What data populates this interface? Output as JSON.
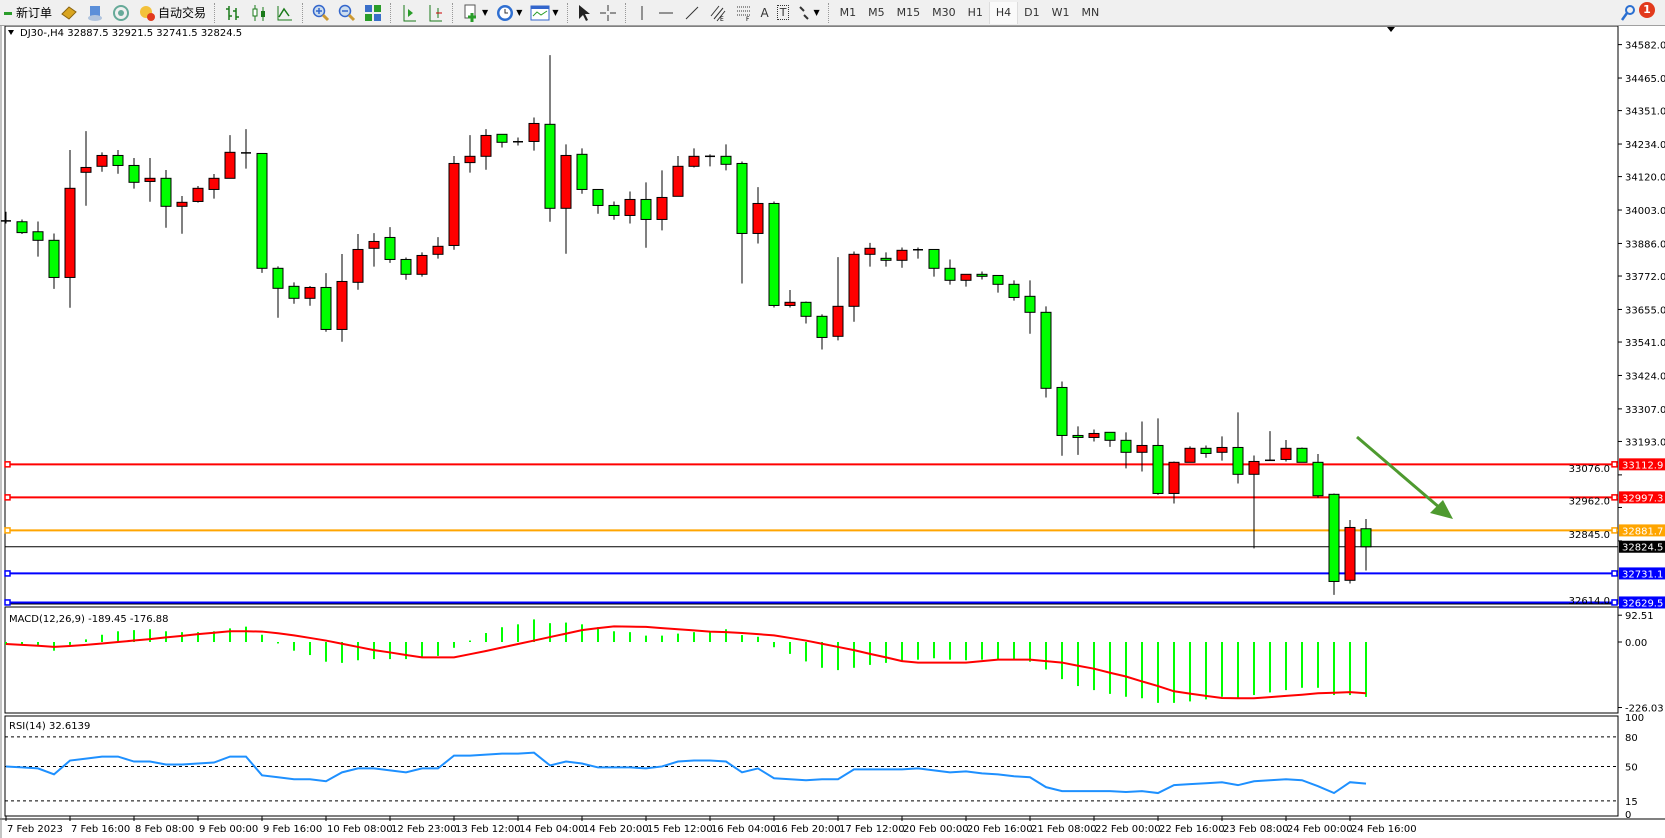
{
  "toolbar": {
    "new_order_label": "新订单",
    "auto_trading_label": "自动交易",
    "timeframes": [
      "M1",
      "M5",
      "M15",
      "M30",
      "H1",
      "H4",
      "D1",
      "W1",
      "MN"
    ],
    "active_timeframe": "H4",
    "notification_count": "1",
    "text_tool_label": "A",
    "text_label_tool": "T"
  },
  "chart": {
    "header": "DJ30-,H4  32887.5 32921.5 32741.5 32824.5",
    "symbol": "DJ30-",
    "timeframe": "H4",
    "colors": {
      "bull": "#ff0000",
      "bear": "#00ff00",
      "macd_hist": "#00ff00",
      "macd_signal": "#ff0000",
      "rsi": "#1e90ff",
      "annotation_arrow": "#4e9a2f"
    },
    "levels": [
      {
        "price": 33112.9,
        "label": "33112.9",
        "color": "#ff0000"
      },
      {
        "price": 32997.3,
        "label": "32997.3",
        "color": "#ff0000"
      },
      {
        "price": 32881.7,
        "label": "32881.7",
        "color": "#ffa500"
      },
      {
        "price": 32731.1,
        "label": "32731.1",
        "color": "#0000ff"
      },
      {
        "price": 32629.5,
        "label": "32629.5",
        "color": "#0000ff"
      }
    ],
    "current_price": {
      "price": 32824.5,
      "label": "32824.5"
    }
  },
  "chart_data": [
    {
      "type": "candlestick",
      "title": "DJ30-,H4",
      "yaxis_ticks": [
        "34582.0",
        "34465.0",
        "34351.0",
        "34234.0",
        "34120.0",
        "34003.0",
        "33886.0",
        "33772.0",
        "33655.0",
        "33541.0",
        "33424.0",
        "33307.0",
        "33193.0",
        "33076.0",
        "32962.0",
        "32845.0",
        "32614.0"
      ],
      "x_tick_labels": [
        "7 Feb 2023",
        "7 Feb 16:00",
        "8 Feb 08:00",
        "9 Feb 00:00",
        "9 Feb 16:00",
        "10 Feb 08:00",
        "12 Feb 23:00",
        "13 Feb 12:00",
        "14 Feb 04:00",
        "14 Feb 20:00",
        "15 Feb 12:00",
        "16 Feb 04:00",
        "16 Feb 20:00",
        "17 Feb 12:00",
        "20 Feb 00:00",
        "20 Feb 16:00",
        "21 Feb 08:00",
        "22 Feb 00:00",
        "22 Feb 16:00",
        "23 Feb 08:00",
        "24 Feb 00:00",
        "24 Feb 16:00"
      ],
      "ohlc": [
        [
          33964,
          33997,
          33956,
          33965
        ],
        [
          33962,
          33970,
          33919,
          33924
        ],
        [
          33927,
          33963,
          33840,
          33897
        ],
        [
          33897,
          33921,
          33727,
          33767
        ],
        [
          33767,
          34213,
          33661,
          34079
        ],
        [
          34135,
          34279,
          34018,
          34152
        ],
        [
          34156,
          34205,
          34137,
          34194
        ],
        [
          34194,
          34213,
          34130,
          34159
        ],
        [
          34159,
          34185,
          34078,
          34100
        ],
        [
          34103,
          34185,
          34032,
          34114
        ],
        [
          34114,
          34143,
          33941,
          34016
        ],
        [
          34016,
          34052,
          33920,
          34030
        ],
        [
          34033,
          34087,
          34029,
          34079
        ],
        [
          34075,
          34129,
          34043,
          34114
        ],
        [
          34114,
          34265,
          34114,
          34205
        ],
        [
          34202,
          34286,
          34148,
          34203
        ],
        [
          34201,
          34201,
          33783,
          33799
        ],
        [
          33799,
          33806,
          33626,
          33729
        ],
        [
          33736,
          33750,
          33675,
          33694
        ],
        [
          33694,
          33737,
          33668,
          33732
        ],
        [
          33732,
          33782,
          33577,
          33585
        ],
        [
          33585,
          33849,
          33542,
          33753
        ],
        [
          33750,
          33919,
          33724,
          33865
        ],
        [
          33869,
          33922,
          33805,
          33893
        ],
        [
          33907,
          33943,
          33818,
          33830
        ],
        [
          33830,
          33837,
          33759,
          33778
        ],
        [
          33778,
          33855,
          33770,
          33844
        ],
        [
          33848,
          33908,
          33833,
          33876
        ],
        [
          33879,
          34192,
          33864,
          34166
        ],
        [
          34169,
          34265,
          34134,
          34191
        ],
        [
          34191,
          34286,
          34144,
          34264
        ],
        [
          34268,
          34268,
          34222,
          34240
        ],
        [
          34242,
          34257,
          34229,
          34242
        ],
        [
          34243,
          34327,
          34211,
          34306
        ],
        [
          34303,
          34545,
          33962,
          34009
        ],
        [
          34009,
          34233,
          33850,
          34194
        ],
        [
          34198,
          34219,
          34060,
          34075
        ],
        [
          34075,
          34075,
          33990,
          34019
        ],
        [
          34019,
          34033,
          33969,
          33984
        ],
        [
          33984,
          34068,
          33956,
          34040
        ],
        [
          34040,
          34100,
          33871,
          33970
        ],
        [
          33970,
          34142,
          33932,
          34047
        ],
        [
          34051,
          34192,
          34051,
          34156
        ],
        [
          34156,
          34219,
          34152,
          34191
        ],
        [
          34190,
          34198,
          34156,
          34191
        ],
        [
          34191,
          34233,
          34142,
          34163
        ],
        [
          34166,
          34173,
          33746,
          33921
        ],
        [
          33921,
          34083,
          33886,
          34026
        ],
        [
          34026,
          34033,
          33662,
          33669
        ],
        [
          33669,
          33723,
          33662,
          33680
        ],
        [
          33680,
          33683,
          33606,
          33631
        ],
        [
          33631,
          33638,
          33515,
          33557
        ],
        [
          33561,
          33838,
          33547,
          33666
        ],
        [
          33666,
          33858,
          33612,
          33848
        ],
        [
          33848,
          33888,
          33805,
          33869
        ],
        [
          33834,
          33855,
          33805,
          33827
        ],
        [
          33827,
          33872,
          33801,
          33862
        ],
        [
          33864,
          33872,
          33833,
          33864
        ],
        [
          33865,
          33865,
          33770,
          33799
        ],
        [
          33799,
          33830,
          33742,
          33757
        ],
        [
          33757,
          33778,
          33735,
          33778
        ],
        [
          33778,
          33788,
          33760,
          33771
        ],
        [
          33774,
          33774,
          33714,
          33743
        ],
        [
          33743,
          33757,
          33686,
          33697
        ],
        [
          33701,
          33757,
          33570,
          33645
        ],
        [
          33645,
          33666,
          33347,
          33379
        ],
        [
          33382,
          33403,
          33143,
          33214
        ],
        [
          33214,
          33246,
          33146,
          33207
        ],
        [
          33207,
          33235,
          33193,
          33221
        ],
        [
          33225,
          33225,
          33174,
          33197
        ],
        [
          33197,
          33225,
          33099,
          33155
        ],
        [
          33155,
          33263,
          33088,
          33179
        ],
        [
          33179,
          33274,
          33006,
          33011
        ],
        [
          33011,
          33123,
          32976,
          33120
        ],
        [
          33120,
          33176,
          33120,
          33169
        ],
        [
          33169,
          33179,
          33136,
          33151
        ],
        [
          33155,
          33211,
          33126,
          33172
        ],
        [
          33172,
          33295,
          33046,
          33078
        ],
        [
          33078,
          33144,
          32819,
          33123
        ],
        [
          33127,
          33229,
          33127,
          33127
        ],
        [
          33130,
          33198,
          33123,
          33169
        ],
        [
          33169,
          33172,
          33120,
          33120
        ],
        [
          33120,
          33149,
          32996,
          33003
        ],
        [
          33008,
          33011,
          32656,
          32703
        ],
        [
          32707,
          32918,
          32696,
          32892
        ],
        [
          32887.5,
          32921.5,
          32741.5,
          32824.5
        ]
      ]
    },
    {
      "type": "bar",
      "title": "MACD(12,26,9) -189.45 -176.88",
      "yaxis_ticks": [
        "92.51",
        "0.00",
        "-226.03"
      ],
      "histogram": [
        -9,
        -9,
        -12,
        -30,
        -10,
        9,
        25,
        37,
        41,
        44,
        37,
        34,
        34,
        37,
        47,
        53,
        25,
        -5,
        -30,
        -45,
        -68,
        -72,
        -63,
        -59,
        -59,
        -59,
        -53,
        -48,
        -20,
        5,
        31,
        51,
        61,
        78,
        65,
        67,
        61,
        51,
        37,
        34,
        22,
        22,
        29,
        34,
        34,
        44,
        24,
        18,
        -18,
        -41,
        -67,
        -89,
        -97,
        -89,
        -79,
        -72,
        -66,
        -61,
        -56,
        -61,
        -63,
        -61,
        -59,
        -59,
        -68,
        -95,
        -128,
        -152,
        -166,
        -179,
        -189,
        -194,
        -210,
        -210,
        -205,
        -198,
        -189,
        -192,
        -183,
        -174,
        -166,
        -158,
        -158,
        -183,
        -183,
        -189.45
      ],
      "signal": [
        -7,
        -10,
        -13,
        -17,
        -14,
        -10,
        -5,
        0,
        5,
        10,
        16,
        21,
        27,
        32,
        37,
        37,
        36,
        30,
        23,
        14,
        5,
        -6,
        -17,
        -28,
        -36,
        -45,
        -53,
        -53,
        -53,
        -42,
        -31,
        -19,
        -7,
        5,
        17,
        29,
        41,
        48,
        54,
        53,
        52,
        48,
        44,
        40,
        36,
        34,
        31,
        27,
        23,
        14,
        5,
        -6,
        -17,
        -28,
        -41,
        -53,
        -66,
        -71,
        -71,
        -71,
        -71,
        -66,
        -61,
        -61,
        -61,
        -66,
        -71,
        -82,
        -92,
        -106,
        -119,
        -136,
        -152,
        -170,
        -178,
        -186,
        -193,
        -194,
        -194,
        -190,
        -186,
        -182,
        -177,
        -175,
        -173,
        -176.88
      ]
    },
    {
      "type": "line",
      "title": "RSI(14) 32.6139",
      "yaxis_ticks": [
        "100",
        "80",
        "50",
        "15",
        "0"
      ],
      "levels": [
        80,
        50,
        15
      ],
      "ylim": [
        0,
        100
      ],
      "values": [
        50,
        49,
        48,
        42,
        56,
        58,
        60,
        60,
        55,
        55,
        52,
        52,
        53,
        54,
        60,
        60,
        41,
        39,
        37,
        37,
        35,
        44,
        48,
        48,
        46,
        44,
        48,
        48,
        61,
        61,
        62,
        63,
        63,
        64,
        51,
        55,
        53,
        49,
        49,
        49,
        48,
        50,
        55,
        56,
        56,
        55,
        44,
        48,
        38,
        37,
        36,
        37,
        37,
        47,
        47,
        47,
        47,
        48,
        46,
        44,
        45,
        43,
        42,
        40,
        39,
        29,
        25,
        25,
        25,
        25,
        24,
        25,
        23,
        31,
        32,
        33,
        34,
        31,
        35,
        36,
        37,
        36,
        30,
        23,
        34,
        32.6139
      ]
    }
  ]
}
